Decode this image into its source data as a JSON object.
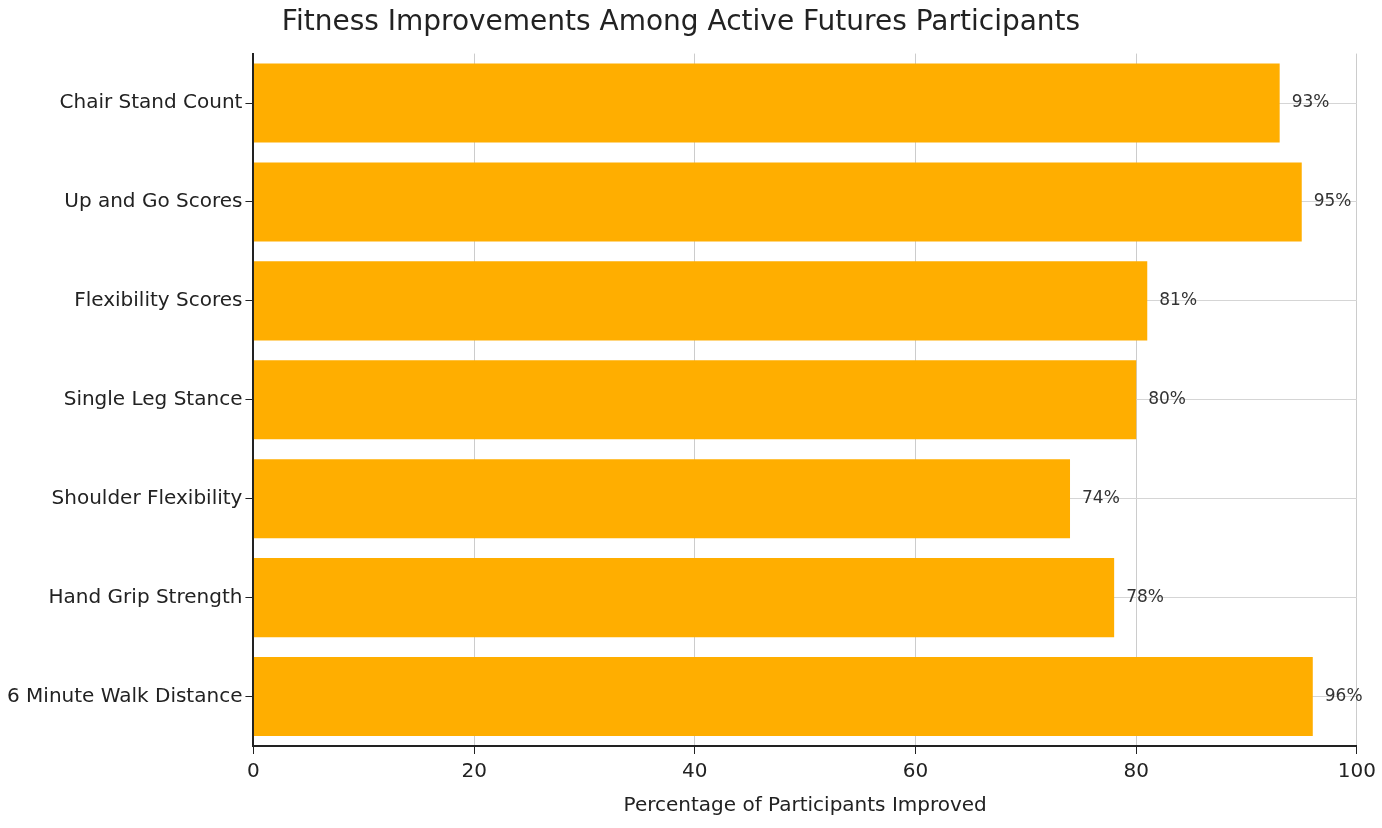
{
  "chart_data": {
    "type": "bar",
    "orientation": "horizontal",
    "title": "Fitness Improvements Among Active Futures Participants",
    "xlabel": "Percentage of Participants Improved",
    "categories": [
      "Chair Stand Count",
      "Up and Go Scores",
      "Flexibility Scores",
      "Single Leg Stance",
      "Shoulder Flexibility",
      "Hand Grip Strength",
      "6 Minute Walk Distance"
    ],
    "values": [
      93,
      95,
      81,
      80,
      74,
      78,
      96
    ],
    "value_labels": [
      "93%",
      "95%",
      "81%",
      "80%",
      "74%",
      "78%",
      "96%"
    ],
    "color": "#ffae00",
    "xlim": [
      0,
      100
    ],
    "xticks": [
      0,
      20,
      40,
      60,
      80,
      100
    ],
    "grid": true
  }
}
